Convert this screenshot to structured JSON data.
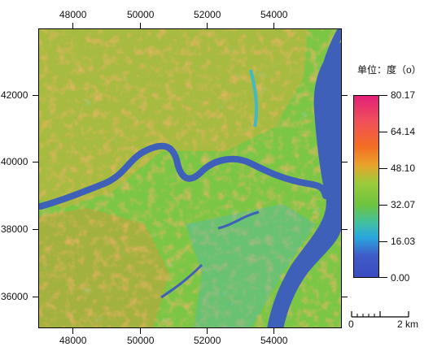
{
  "x_ticks": [
    "48000",
    "50000",
    "52000",
    "54000"
  ],
  "y_ticks": [
    "42000",
    "40000",
    "38000",
    "36000"
  ],
  "legend": {
    "title": "单位：度（o）",
    "colors": [
      "#3a4cc0",
      "#28a8e0",
      "#6ec43f",
      "#f36d22",
      "#e2207a"
    ],
    "values": [
      "80.17",
      "64.14",
      "48.10",
      "32.07",
      "16.03",
      "0.00"
    ]
  },
  "scale_bar": {
    "start": "0",
    "end": "2 km"
  },
  "map_colors": {
    "water": "#3e60b8",
    "low": "#45b9c2",
    "mid": "#7cc645",
    "high": "#f08a2c",
    "steep": "#ee4f2a"
  }
}
